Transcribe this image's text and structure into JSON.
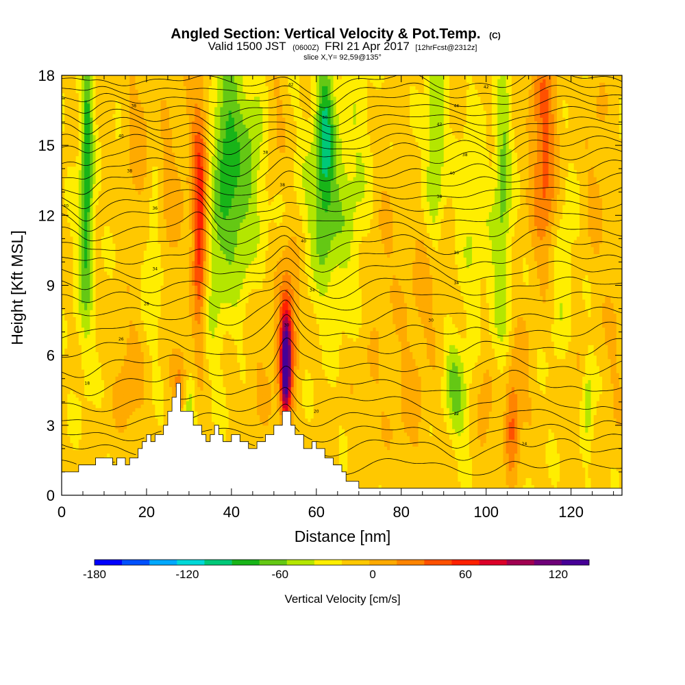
{
  "header": {
    "title": "Angled Section: Vertical Velocity & Pot.Temp.",
    "title_suffix": "(C)",
    "subtitle_main": "Valid 1500 JST",
    "subtitle_utc": "(0600Z)",
    "subtitle_date": "FRI 21 Apr 2017",
    "subtitle_fcst": "[12hrFcst@2312z]",
    "slice": "slice X,Y= 92,59@135°"
  },
  "chart_data": {
    "type": "heatmap",
    "title": "Angled Section: Vertical Velocity & Pot.Temp.",
    "xlabel": "Distance [nm]",
    "ylabel": "Height [Kft MSL]",
    "xlim": [
      0,
      132
    ],
    "ylim": [
      0,
      18
    ],
    "x_ticks": [
      0,
      20,
      40,
      60,
      80,
      100,
      120
    ],
    "y_ticks": [
      0,
      3,
      6,
      9,
      12,
      15,
      18
    ],
    "grid": false,
    "background_velocity": 5,
    "colorbar": {
      "title": "Vertical Velocity [cm/s]",
      "min": -180,
      "max": 140,
      "step": 20,
      "tick_values": [
        -180,
        -120,
        -60,
        0,
        60,
        120
      ],
      "colors": [
        "#0000ff",
        "#0050ff",
        "#00a8ff",
        "#00d8d8",
        "#00c878",
        "#18b418",
        "#64c814",
        "#b4e600",
        "#ffee00",
        "#ffc800",
        "#ffaa00",
        "#ff8400",
        "#ff5000",
        "#ff2000",
        "#dc0028",
        "#a00050",
        "#6e0078",
        "#460096"
      ]
    },
    "features": [
      {
        "x": 6,
        "y": 14.5,
        "sx": 1.0,
        "sy": 4.2,
        "v": -75
      },
      {
        "x": 5,
        "y": 10,
        "sx": 1.5,
        "sy": 3,
        "v": -25
      },
      {
        "x": 16,
        "y": 5,
        "sx": 2.5,
        "sy": 2,
        "v": 28
      },
      {
        "x": 18,
        "y": 15,
        "sx": 2,
        "sy": 3,
        "v": 25
      },
      {
        "x": 22,
        "y": 10,
        "sx": 2,
        "sy": 2.5,
        "v": -30
      },
      {
        "x": 25,
        "y": 12,
        "sx": 2,
        "sy": 3,
        "v": 30
      },
      {
        "x": 28,
        "y": 5,
        "sx": 1.5,
        "sy": 1,
        "v": 45
      },
      {
        "x": 32.5,
        "y": 11,
        "sx": 1.1,
        "sy": 3.0,
        "v": 85
      },
      {
        "x": 32,
        "y": 15,
        "sx": 2,
        "sy": 3,
        "v": 30
      },
      {
        "x": 30,
        "y": 4,
        "sx": 1,
        "sy": 1,
        "v": -40
      },
      {
        "x": 36,
        "y": 10,
        "sx": 2,
        "sy": 3,
        "v": -35
      },
      {
        "x": 39,
        "y": 15,
        "sx": 2,
        "sy": 3,
        "v": -70
      },
      {
        "x": 42,
        "y": 11,
        "sx": 2,
        "sy": 2.5,
        "v": -30
      },
      {
        "x": 45,
        "y": 15,
        "sx": 3,
        "sy": 3,
        "v": -40
      },
      {
        "x": 47,
        "y": 5,
        "sx": 3,
        "sy": 2,
        "v": 15
      },
      {
        "x": 50,
        "y": 16,
        "sx": 2,
        "sy": 2,
        "v": 25
      },
      {
        "x": 52.8,
        "y": 5.5,
        "sx": 0.8,
        "sy": 1.6,
        "v": 148
      },
      {
        "x": 53,
        "y": 6.5,
        "sx": 1.6,
        "sy": 2.2,
        "v": 55
      },
      {
        "x": 55,
        "y": 9,
        "sx": 2,
        "sy": 2,
        "v": 25
      },
      {
        "x": 59,
        "y": 12,
        "sx": 3,
        "sy": 3,
        "v": -25
      },
      {
        "x": 62,
        "y": 15.5,
        "sx": 1.5,
        "sy": 3,
        "v": -75
      },
      {
        "x": 65,
        "y": 12,
        "sx": 3,
        "sy": 3,
        "v": -30
      },
      {
        "x": 70,
        "y": 14,
        "sx": 3,
        "sy": 3,
        "v": -20
      },
      {
        "x": 72,
        "y": 4,
        "sx": 3,
        "sy": 2,
        "v": 15
      },
      {
        "x": 76,
        "y": 11,
        "sx": 3,
        "sy": 3,
        "v": 15
      },
      {
        "x": 82,
        "y": 4,
        "sx": 3,
        "sy": 2.5,
        "v": 20
      },
      {
        "x": 86,
        "y": 9,
        "sx": 3,
        "sy": 2,
        "v": 22
      },
      {
        "x": 88,
        "y": 15,
        "sx": 1.5,
        "sy": 3,
        "v": -50
      },
      {
        "x": 92,
        "y": 5,
        "sx": 1.5,
        "sy": 1.5,
        "v": -35
      },
      {
        "x": 94,
        "y": 4,
        "sx": 1.5,
        "sy": 1.5,
        "v": -30
      },
      {
        "x": 97,
        "y": 12,
        "sx": 2.5,
        "sy": 3,
        "v": -25
      },
      {
        "x": 100,
        "y": 4,
        "sx": 1.5,
        "sy": 2,
        "v": 30
      },
      {
        "x": 103,
        "y": 8,
        "sx": 2,
        "sy": 3,
        "v": -25
      },
      {
        "x": 104,
        "y": 14,
        "sx": 1.3,
        "sy": 3,
        "v": -50
      },
      {
        "x": 106,
        "y": 3,
        "sx": 1.1,
        "sy": 1.5,
        "v": 55
      },
      {
        "x": 108,
        "y": 5,
        "sx": 2,
        "sy": 2,
        "v": 25
      },
      {
        "x": 113.5,
        "y": 16,
        "sx": 2.2,
        "sy": 3,
        "v": 55
      },
      {
        "x": 114,
        "y": 12,
        "sx": 2,
        "sy": 2,
        "v": 30
      },
      {
        "x": 118,
        "y": 9,
        "sx": 2,
        "sy": 3,
        "v": -25
      },
      {
        "x": 120,
        "y": 5,
        "sx": 2,
        "sy": 2,
        "v": 20
      },
      {
        "x": 124,
        "y": 4,
        "sx": 1,
        "sy": 1.5,
        "v": -40
      },
      {
        "x": 126,
        "y": 14,
        "sx": 2,
        "sy": 3,
        "v": 20
      },
      {
        "x": 130,
        "y": 6,
        "sx": 2,
        "sy": 3,
        "v": 15
      }
    ],
    "terrain": {
      "x": [
        0,
        4,
        4,
        8,
        8,
        12,
        12,
        13,
        13,
        15,
        15,
        16,
        16,
        18,
        18,
        19,
        19,
        20,
        20,
        21,
        21,
        22,
        22,
        24,
        24,
        25,
        25,
        26,
        26,
        27,
        27,
        28,
        28,
        31,
        31,
        33,
        33,
        34,
        34,
        35,
        35,
        36,
        36,
        37,
        37,
        38,
        38,
        40,
        40,
        42,
        42,
        44,
        44,
        46,
        46,
        48,
        48,
        50,
        50,
        52,
        52,
        54,
        54,
        55,
        55,
        57,
        57,
        59,
        59,
        60,
        60,
        62,
        62,
        64,
        64,
        66,
        66,
        67,
        67,
        70,
        70,
        71,
        71,
        132
      ],
      "y": [
        1.0,
        1.0,
        1.3,
        1.3,
        1.6,
        1.6,
        1.3,
        1.3,
        1.6,
        1.6,
        1.3,
        1.3,
        1.6,
        1.6,
        2.0,
        2.0,
        2.3,
        2.3,
        2.6,
        2.6,
        2.3,
        2.3,
        2.6,
        2.6,
        3.0,
        3.0,
        3.6,
        3.6,
        4.2,
        4.2,
        4.8,
        4.8,
        3.6,
        3.6,
        3.0,
        3.0,
        2.6,
        2.6,
        2.3,
        2.3,
        2.6,
        2.6,
        3.0,
        3.0,
        2.6,
        2.6,
        2.3,
        2.3,
        2.6,
        2.6,
        2.3,
        2.3,
        2.0,
        2.0,
        2.3,
        2.3,
        2.6,
        2.6,
        3.0,
        3.0,
        3.6,
        3.6,
        3.0,
        3.0,
        2.6,
        2.6,
        2.0,
        2.0,
        2.3,
        2.3,
        2.0,
        2.0,
        1.6,
        1.6,
        1.3,
        1.3,
        1.0,
        1.0,
        0.6,
        0.6,
        0.3,
        0.3,
        0.3,
        0.3
      ]
    },
    "potential_temperature_contours": {
      "base_heights": [
        1.2,
        2.0,
        2.6,
        3.2,
        3.9,
        4.7,
        5.5,
        6.3,
        7.0,
        7.7,
        8.4,
        9.0,
        9.6,
        10.2,
        10.8,
        11.4,
        12.0,
        12.5,
        13.0,
        13.5,
        14.0,
        14.5,
        15.0,
        15.4,
        15.8,
        16.2,
        16.6,
        17.0,
        17.4,
        17.8
      ],
      "labels": [
        {
          "x": 6,
          "y": 4.8,
          "text": "18"
        },
        {
          "x": 14,
          "y": 6.7,
          "text": "26"
        },
        {
          "x": 20,
          "y": 8.2,
          "text": "28"
        },
        {
          "x": 22,
          "y": 9.7,
          "text": "34"
        },
        {
          "x": 22,
          "y": 12.3,
          "text": "36"
        },
        {
          "x": 1,
          "y": 12.4,
          "text": "40"
        },
        {
          "x": 16,
          "y": 13.9,
          "text": "38"
        },
        {
          "x": 14,
          "y": 15.4,
          "text": "40"
        },
        {
          "x": 17,
          "y": 16.7,
          "text": "38"
        },
        {
          "x": 48,
          "y": 14.7,
          "text": "38"
        },
        {
          "x": 52,
          "y": 13.3,
          "text": "38"
        },
        {
          "x": 57,
          "y": 10.9,
          "text": "40"
        },
        {
          "x": 59,
          "y": 8.8,
          "text": "34"
        },
        {
          "x": 53,
          "y": 7.3,
          "text": "30"
        },
        {
          "x": 60,
          "y": 3.6,
          "text": "20"
        },
        {
          "x": 54,
          "y": 17.6,
          "text": "42"
        },
        {
          "x": 62,
          "y": 16.2,
          "text": "40"
        },
        {
          "x": 87,
          "y": 7.5,
          "text": "30"
        },
        {
          "x": 93,
          "y": 9.1,
          "text": "34"
        },
        {
          "x": 93,
          "y": 10.4,
          "text": "36"
        },
        {
          "x": 89,
          "y": 12.8,
          "text": "38"
        },
        {
          "x": 92,
          "y": 13.8,
          "text": "40"
        },
        {
          "x": 95,
          "y": 14.6,
          "text": "38"
        },
        {
          "x": 89,
          "y": 15.9,
          "text": "42"
        },
        {
          "x": 93,
          "y": 16.7,
          "text": "44"
        },
        {
          "x": 100,
          "y": 17.5,
          "text": "42"
        },
        {
          "x": 93,
          "y": 3.5,
          "text": "22"
        },
        {
          "x": 109,
          "y": 2.2,
          "text": "24"
        }
      ]
    }
  }
}
